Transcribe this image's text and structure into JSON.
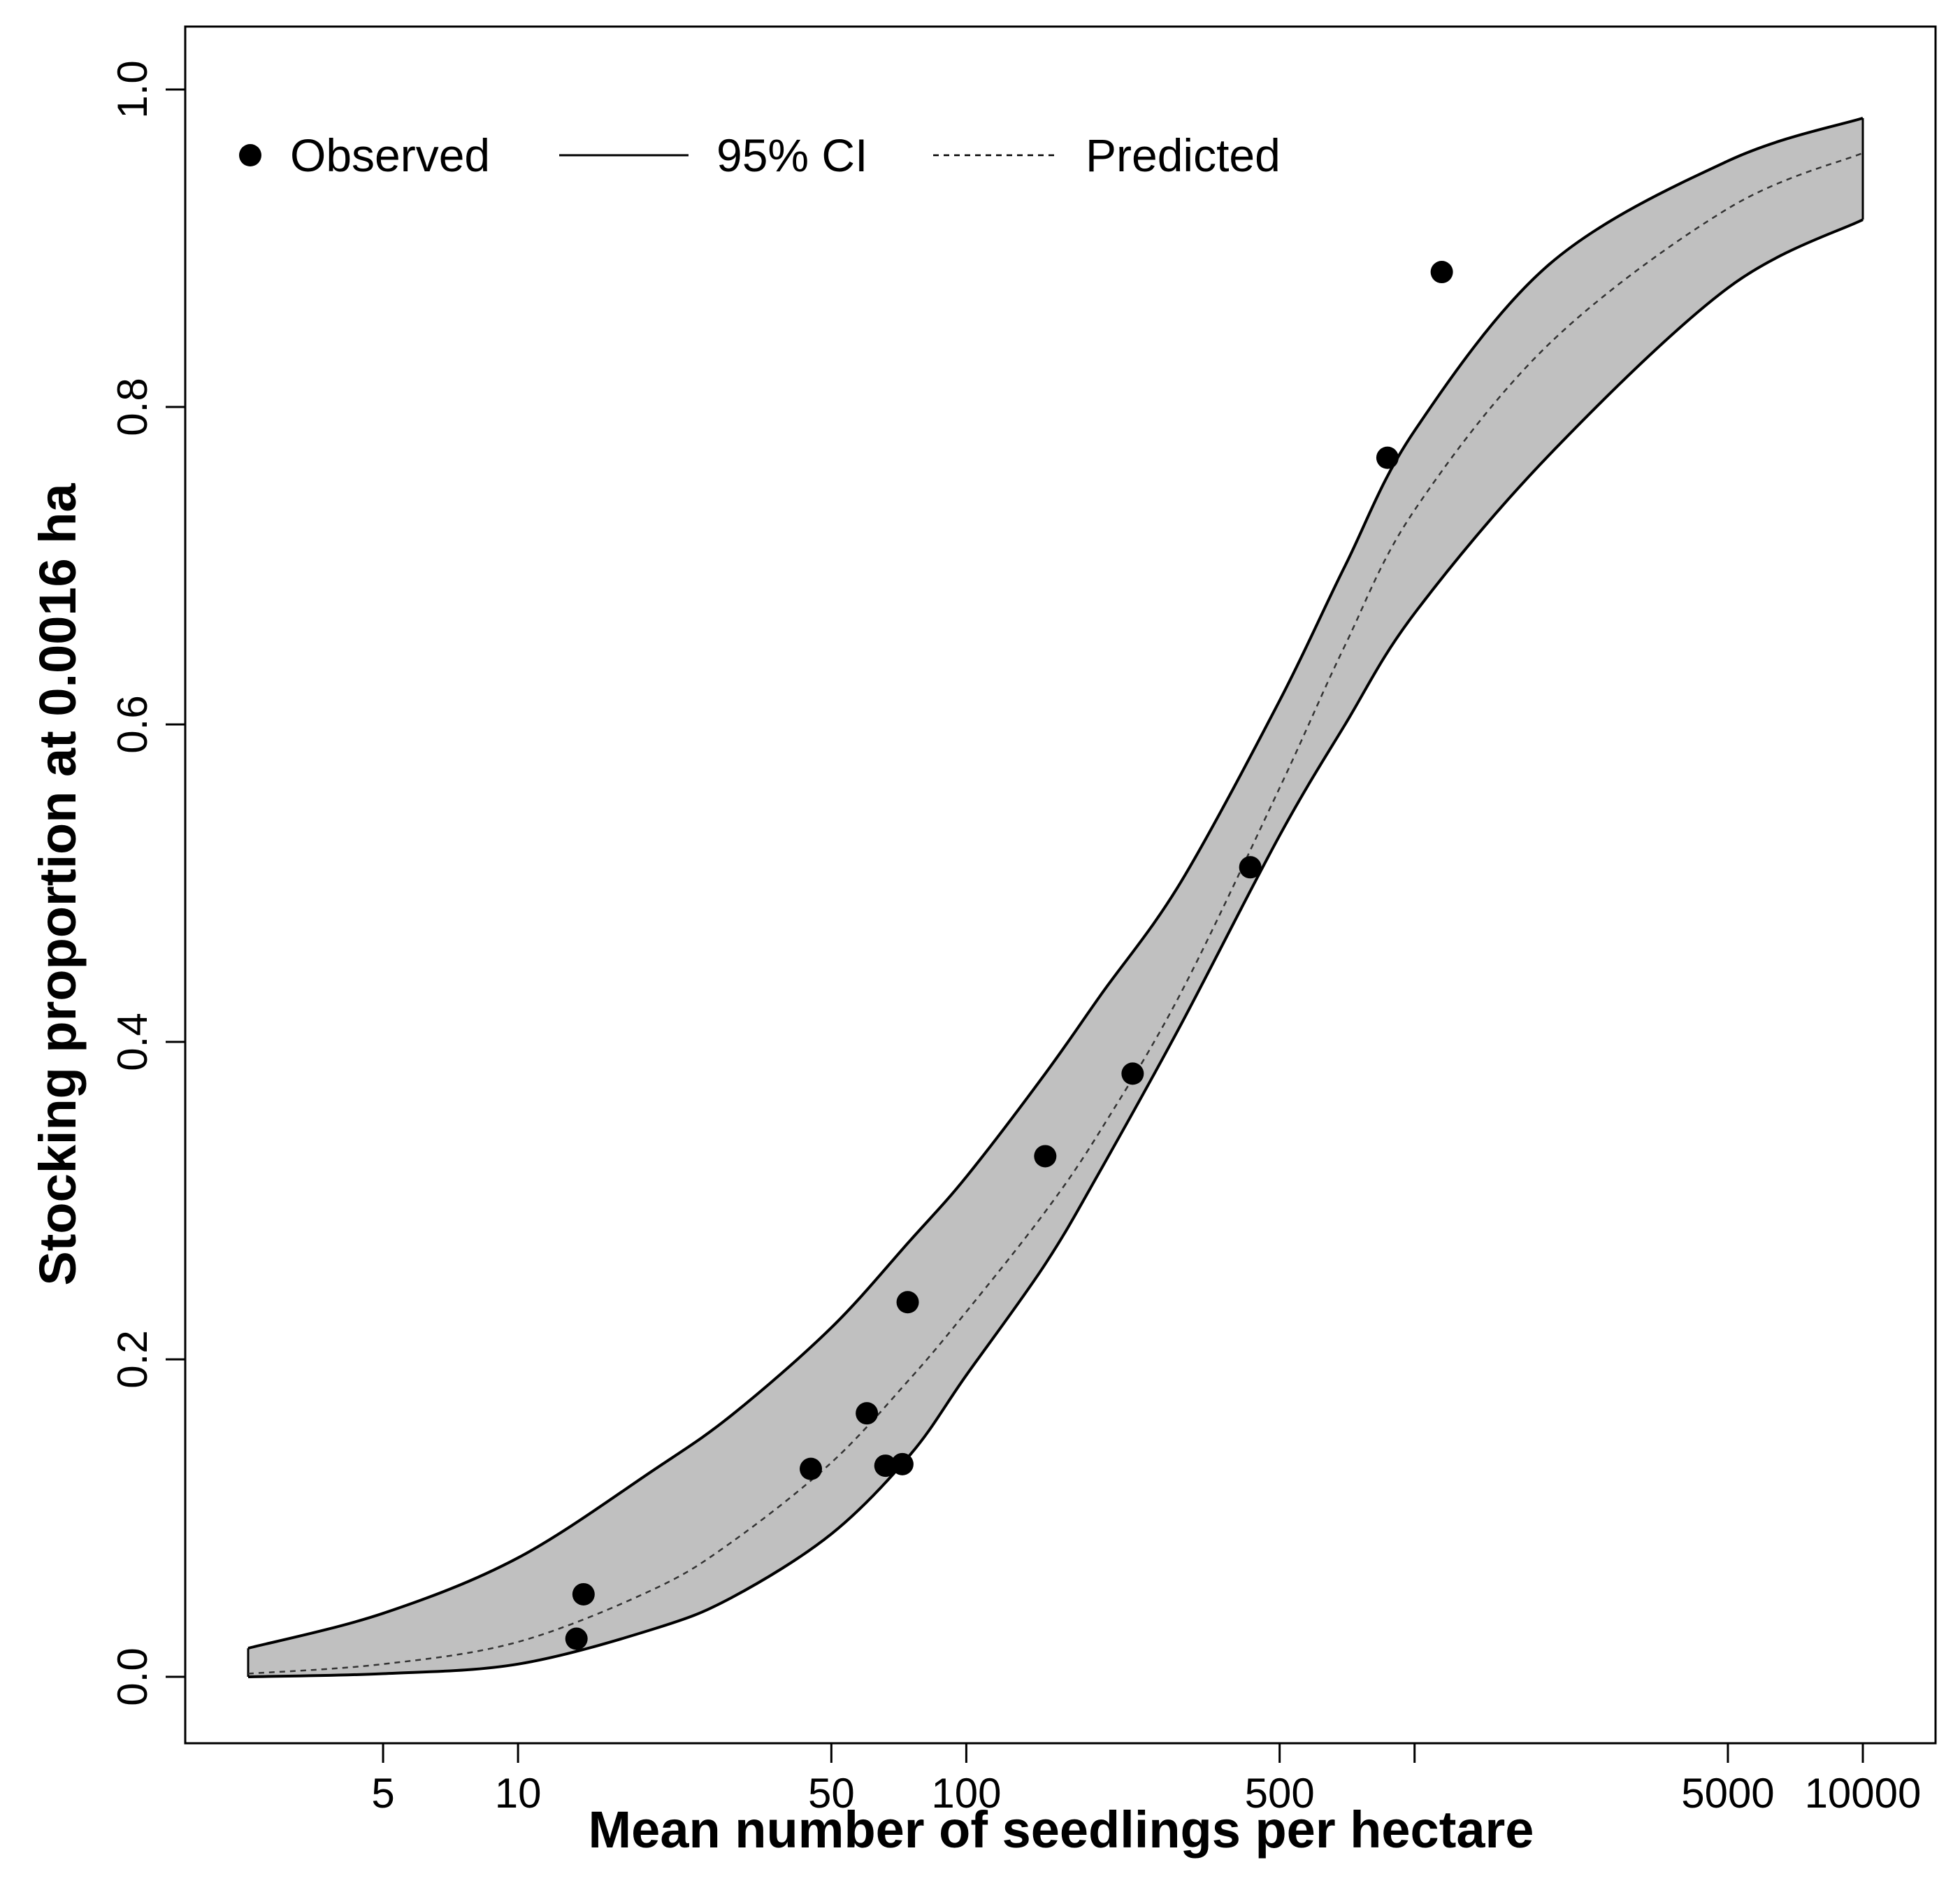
{
  "chart_data": {
    "type": "line",
    "title": "",
    "xlabel": "Mean number of seedlings per hectare",
    "ylabel": "Stocking proportion at 0.0016 ha",
    "xscale": "log10",
    "xlim": [
      2.5,
      10000
    ],
    "ylim": [
      0,
      1
    ],
    "x_ticks": [
      5,
      10,
      50,
      100,
      500,
      1000,
      5000,
      10000
    ],
    "x_tick_labels": [
      "5",
      "10",
      "50",
      "100",
      "500",
      "",
      "5000",
      "10000"
    ],
    "y_ticks": [
      0,
      0.2,
      0.4,
      0.6,
      0.8,
      1.0
    ],
    "y_tick_labels": [
      "0.0",
      "0.2",
      "0.4",
      "0.6",
      "0.8",
      "1.0"
    ],
    "grid": false,
    "legend": {
      "placement": "top-left",
      "entries": [
        {
          "label": "Observed",
          "symbol": "point"
        },
        {
          "label": "95% CI",
          "symbol": "solid-line"
        },
        {
          "label": "Predicted",
          "symbol": "dashed-line"
        }
      ]
    },
    "colors": {
      "ci_fill": "#c0c0c0",
      "line": "#000000",
      "point": "#000000"
    },
    "series": [
      {
        "name": "Observed",
        "kind": "scatter",
        "points": [
          {
            "x": 13.5,
            "y": 0.024
          },
          {
            "x": 14,
            "y": 0.052
          },
          {
            "x": 45,
            "y": 0.131
          },
          {
            "x": 60,
            "y": 0.166
          },
          {
            "x": 66,
            "y": 0.133
          },
          {
            "x": 72,
            "y": 0.134
          },
          {
            "x": 74,
            "y": 0.236
          },
          {
            "x": 150,
            "y": 0.328
          },
          {
            "x": 235,
            "y": 0.38
          },
          {
            "x": 430,
            "y": 0.51
          },
          {
            "x": 870,
            "y": 0.768
          },
          {
            "x": 1150,
            "y": 0.885
          }
        ]
      },
      {
        "name": "Predicted",
        "kind": "line",
        "style": "dashed",
        "points": [
          {
            "x": 2.5,
            "y": 0.002
          },
          {
            "x": 5,
            "y": 0.008
          },
          {
            "x": 10,
            "y": 0.022
          },
          {
            "x": 20,
            "y": 0.055
          },
          {
            "x": 30,
            "y": 0.085
          },
          {
            "x": 50,
            "y": 0.135
          },
          {
            "x": 75,
            "y": 0.188
          },
          {
            "x": 100,
            "y": 0.23
          },
          {
            "x": 150,
            "y": 0.293
          },
          {
            "x": 200,
            "y": 0.345
          },
          {
            "x": 300,
            "y": 0.43
          },
          {
            "x": 500,
            "y": 0.56
          },
          {
            "x": 700,
            "y": 0.65
          },
          {
            "x": 1000,
            "y": 0.735
          },
          {
            "x": 2000,
            "y": 0.84
          },
          {
            "x": 5000,
            "y": 0.925
          },
          {
            "x": 10000,
            "y": 0.96
          }
        ]
      },
      {
        "name": "95% CI upper",
        "kind": "line",
        "style": "solid",
        "points": [
          {
            "x": 2.5,
            "y": 0.018
          },
          {
            "x": 5,
            "y": 0.04
          },
          {
            "x": 10,
            "y": 0.075
          },
          {
            "x": 20,
            "y": 0.13
          },
          {
            "x": 30,
            "y": 0.165
          },
          {
            "x": 50,
            "y": 0.22
          },
          {
            "x": 75,
            "y": 0.275
          },
          {
            "x": 100,
            "y": 0.315
          },
          {
            "x": 150,
            "y": 0.38
          },
          {
            "x": 200,
            "y": 0.43
          },
          {
            "x": 300,
            "y": 0.5
          },
          {
            "x": 500,
            "y": 0.615
          },
          {
            "x": 700,
            "y": 0.7
          },
          {
            "x": 1000,
            "y": 0.785
          },
          {
            "x": 2000,
            "y": 0.89
          },
          {
            "x": 5000,
            "y": 0.955
          },
          {
            "x": 10000,
            "y": 0.982
          }
        ]
      },
      {
        "name": "95% CI lower",
        "kind": "line",
        "style": "solid",
        "points": [
          {
            "x": 2.5,
            "y": 0.0
          },
          {
            "x": 5,
            "y": 0.002
          },
          {
            "x": 10,
            "y": 0.008
          },
          {
            "x": 20,
            "y": 0.03
          },
          {
            "x": 30,
            "y": 0.05
          },
          {
            "x": 50,
            "y": 0.09
          },
          {
            "x": 75,
            "y": 0.14
          },
          {
            "x": 100,
            "y": 0.19
          },
          {
            "x": 150,
            "y": 0.26
          },
          {
            "x": 200,
            "y": 0.32
          },
          {
            "x": 300,
            "y": 0.41
          },
          {
            "x": 500,
            "y": 0.53
          },
          {
            "x": 700,
            "y": 0.6
          },
          {
            "x": 1000,
            "y": 0.67
          },
          {
            "x": 2000,
            "y": 0.77
          },
          {
            "x": 5000,
            "y": 0.875
          },
          {
            "x": 10000,
            "y": 0.918
          }
        ]
      }
    ]
  }
}
